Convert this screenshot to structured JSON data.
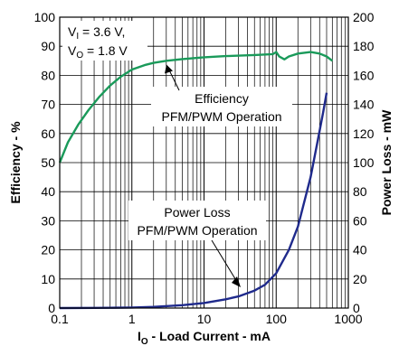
{
  "chart_data": {
    "type": "line",
    "xscale": "log",
    "xlim": [
      0.1,
      1000
    ],
    "ylim_left": [
      0,
      100
    ],
    "ylim_right": [
      0,
      200
    ],
    "grid": true,
    "xlabel": {
      "main": "I",
      "sub": "O",
      "rest": " - Load Current - mA"
    },
    "ylabel_left": "Efficiency - %",
    "ylabel_right": "Power Loss - mW",
    "x_ticks": [
      {
        "value": 0.1,
        "label": "0.1"
      },
      {
        "value": 1,
        "label": "1"
      },
      {
        "value": 10,
        "label": "10"
      },
      {
        "value": 100,
        "label": "100"
      },
      {
        "value": 1000,
        "label": "1000"
      }
    ],
    "y_ticks_left": [
      "0",
      "10",
      "20",
      "30",
      "40",
      "50",
      "60",
      "70",
      "80",
      "90",
      "100"
    ],
    "y_ticks_right": [
      "0",
      "20",
      "40",
      "60",
      "80",
      "100",
      "120",
      "140",
      "160",
      "180",
      "200"
    ],
    "conditions": {
      "line1": {
        "main": "V",
        "sub": "I",
        "rest": " = 3.6 V,"
      },
      "line2": {
        "main": "V",
        "sub": "O",
        "rest": " = 1.8 V"
      }
    },
    "annotations": {
      "efficiency": [
        "Efficiency",
        "PFM/PWM Operation"
      ],
      "power_loss": [
        "Power Loss",
        "PFM/PWM Operation"
      ]
    },
    "series": [
      {
        "name": "Efficiency",
        "axis": "left",
        "color": "#1a9a5a",
        "x": [
          0.1,
          0.13,
          0.18,
          0.25,
          0.35,
          0.5,
          0.7,
          1,
          1.5,
          2,
          3,
          5,
          10,
          20,
          50,
          90,
          100,
          110,
          130,
          150,
          200,
          300,
          400,
          500,
          600
        ],
        "y": [
          50,
          57,
          63,
          68,
          72.5,
          76.5,
          79.5,
          82,
          83.5,
          84.3,
          85,
          85.6,
          86.2,
          86.6,
          87,
          87.3,
          88,
          86.5,
          85.5,
          86.5,
          87.5,
          88,
          87.5,
          86.5,
          85
        ]
      },
      {
        "name": "Power Loss",
        "axis": "right",
        "color": "#1f2a8c",
        "x": [
          0.1,
          0.3,
          0.5,
          1,
          2,
          5,
          10,
          20,
          30,
          50,
          70,
          100,
          150,
          200,
          300,
          400,
          450,
          500
        ],
        "y": [
          0,
          0.1,
          0.2,
          0.4,
          0.8,
          2,
          3.5,
          6,
          8,
          12,
          16,
          24,
          40,
          56,
          90,
          122,
          135,
          148
        ]
      }
    ]
  }
}
